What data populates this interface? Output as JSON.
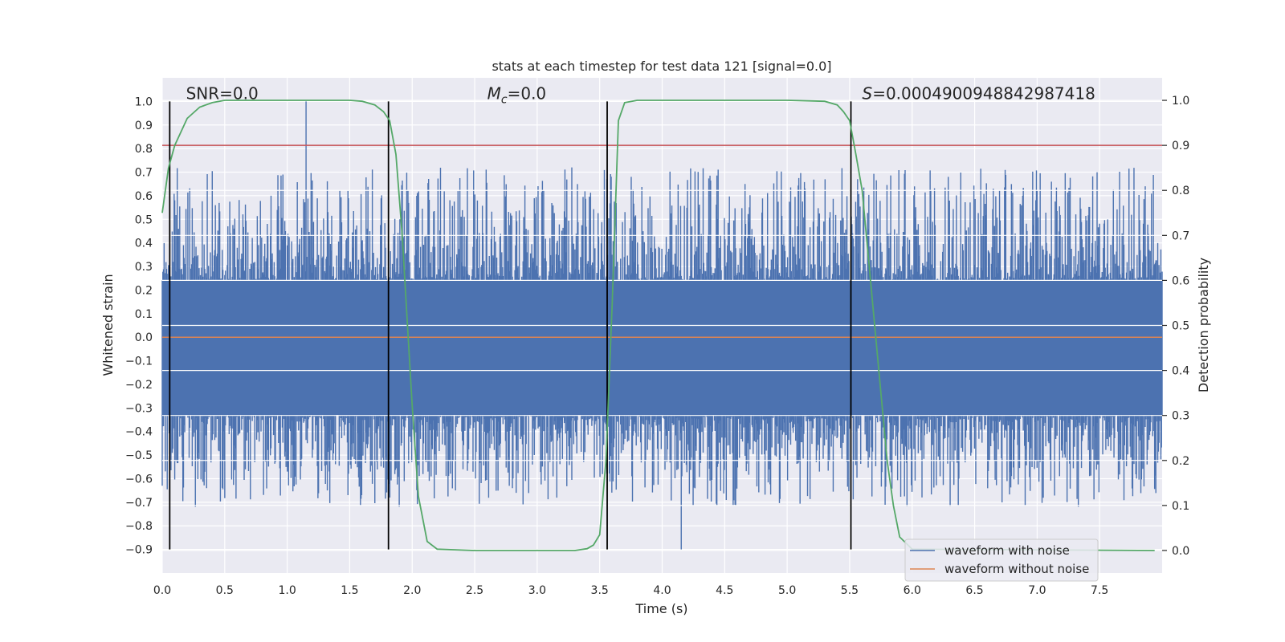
{
  "chart_data": {
    "type": "line",
    "title": "stats at each timestep for test data 121 [signal=0.0]",
    "xlabel": "Time (s)",
    "ylabel_left": "Whitened strain",
    "ylabel_right": "Detection probability",
    "xlim": [
      0.0,
      8.0
    ],
    "ylim_left": [
      -1.0,
      1.1
    ],
    "ylim_right": [
      -0.05,
      1.05
    ],
    "x_ticks": [
      0.0,
      0.5,
      1.0,
      1.5,
      2.0,
      2.5,
      3.0,
      3.5,
      4.0,
      4.5,
      5.0,
      5.5,
      6.0,
      6.5,
      7.0,
      7.5
    ],
    "x_tick_labels": [
      "0.0",
      "0.5",
      "1.0",
      "1.5",
      "2.0",
      "2.5",
      "3.0",
      "3.5",
      "4.0",
      "4.5",
      "5.0",
      "5.5",
      "6.0",
      "6.5",
      "7.0",
      "7.5"
    ],
    "y_left_ticks": [
      1.0,
      0.9,
      0.8,
      0.7,
      0.6,
      0.5,
      0.4,
      0.3,
      0.2,
      0.1,
      0.0,
      -0.1,
      -0.2,
      -0.3,
      -0.4,
      -0.5,
      -0.6,
      -0.7,
      -0.8,
      -0.9
    ],
    "y_left_tick_labels": [
      "1.0",
      "0.9",
      "0.8",
      "0.7",
      "0.6",
      "0.5",
      "0.4",
      "0.3",
      "0.2",
      "0.1",
      "0.0",
      "−0.1",
      "−0.2",
      "−0.3",
      "−0.4",
      "−0.5",
      "−0.6",
      "−0.7",
      "−0.8",
      "−0.9"
    ],
    "y_right_ticks": [
      1.0,
      0.9,
      0.8,
      0.7,
      0.6,
      0.5,
      0.4,
      0.3,
      0.2,
      0.1,
      0.0
    ],
    "y_right_tick_labels": [
      "1.0",
      "0.9",
      "0.8",
      "0.7",
      "0.6",
      "0.5",
      "0.4",
      "0.3",
      "0.2",
      "0.1",
      "0.0"
    ],
    "series": [
      {
        "name": "waveform with noise",
        "axis": "left",
        "color": "#4c72b0",
        "kind": "noise",
        "sample_count": 1600,
        "typical_range": [
          -0.33,
          0.24
        ],
        "max_value": 1.0,
        "min_value": -0.9
      },
      {
        "name": "waveform without noise",
        "axis": "left",
        "color": "#dd8452",
        "x": [
          0.0,
          8.0
        ],
        "y": [
          0.0,
          0.0
        ]
      },
      {
        "name": "detection probability",
        "axis": "right",
        "color": "#55a868",
        "x": [
          0.0,
          0.05,
          0.1,
          0.2,
          0.3,
          0.4,
          0.5,
          1.0,
          1.5,
          1.6,
          1.7,
          1.77,
          1.82,
          1.87,
          1.92,
          2.0,
          2.05,
          2.12,
          2.2,
          2.5,
          3.0,
          3.3,
          3.4,
          3.45,
          3.5,
          3.55,
          3.6,
          3.65,
          3.7,
          3.8,
          4.0,
          5.0,
          5.3,
          5.4,
          5.45,
          5.5,
          5.55,
          5.6,
          5.7,
          5.8,
          5.85,
          5.9,
          6.0,
          7.94
        ],
        "y": [
          0.75,
          0.85,
          0.9,
          0.96,
          0.985,
          0.995,
          1.0,
          1.0,
          1.0,
          0.998,
          0.99,
          0.975,
          0.955,
          0.88,
          0.7,
          0.32,
          0.12,
          0.02,
          0.003,
          0.0,
          0.0,
          0.0,
          0.004,
          0.012,
          0.035,
          0.2,
          0.55,
          0.955,
          0.995,
          1.0,
          1.0,
          1.0,
          0.998,
          0.99,
          0.975,
          0.955,
          0.88,
          0.8,
          0.5,
          0.2,
          0.1,
          0.03,
          0.003,
          0.0
        ]
      }
    ],
    "threshold": {
      "axis": "right",
      "value": 0.9,
      "color": "#c44e52"
    },
    "vertical_lines": {
      "x": [
        0.06,
        1.81,
        3.56,
        5.51
      ],
      "y_range": [
        -0.9,
        1.0
      ],
      "color": "#000000"
    },
    "annotations": [
      {
        "prefix": "SNR",
        "symbol": "",
        "subscript": "",
        "value": "=0.0",
        "x": 0.19,
        "y": 1.01
      },
      {
        "prefix": "",
        "symbol": "M",
        "subscript": "c",
        "value": "=0.0",
        "x": 2.6,
        "y": 1.01
      },
      {
        "prefix": "",
        "symbol": "S",
        "subscript": "",
        "value": "=0.0004900948842987418",
        "x": 5.6,
        "y": 1.01
      }
    ],
    "legend": {
      "position": "lower-right",
      "entries": [
        "waveform with noise",
        "waveform without noise"
      ]
    },
    "grid": true,
    "style": {
      "background": "#eaeaf2",
      "grid_color": "#ffffff"
    }
  }
}
